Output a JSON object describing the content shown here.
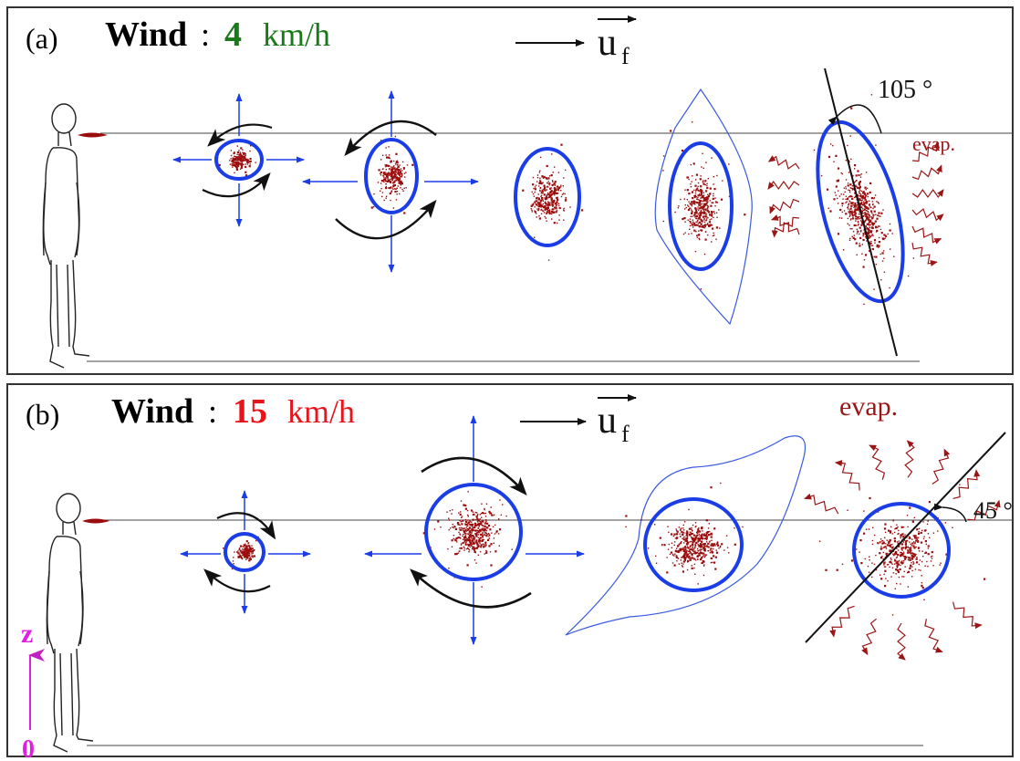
{
  "panel_a": {
    "tag": "(a)",
    "wind_label": "Wind",
    "colon": ":",
    "wind_value": "4",
    "wind_unit": "km/h",
    "velocity_symbol": "u",
    "velocity_subscript": "f",
    "angle_label": "105 °",
    "evap_label": "evap.",
    "accent_color": "#1a7a1a"
  },
  "panel_b": {
    "tag": "(b)",
    "wind_label": "Wind",
    "colon": ":",
    "wind_value": "15",
    "wind_unit": "km/h",
    "velocity_symbol": "u",
    "velocity_subscript": "f",
    "angle_label": "45 °",
    "evap_label": "evap.",
    "accent_color": "#e8141c"
  },
  "axis": {
    "top_label": "z",
    "bottom_label": "0",
    "color": "#e020e0"
  },
  "colors": {
    "ellipse": "#1a3de8",
    "droplet": "#9b0d0d",
    "expansion_arrow": "#1a3de8",
    "rotation_arrow": "#111111",
    "envelope": "#3a5ae0",
    "evap_arrow": "#9b1515"
  }
}
